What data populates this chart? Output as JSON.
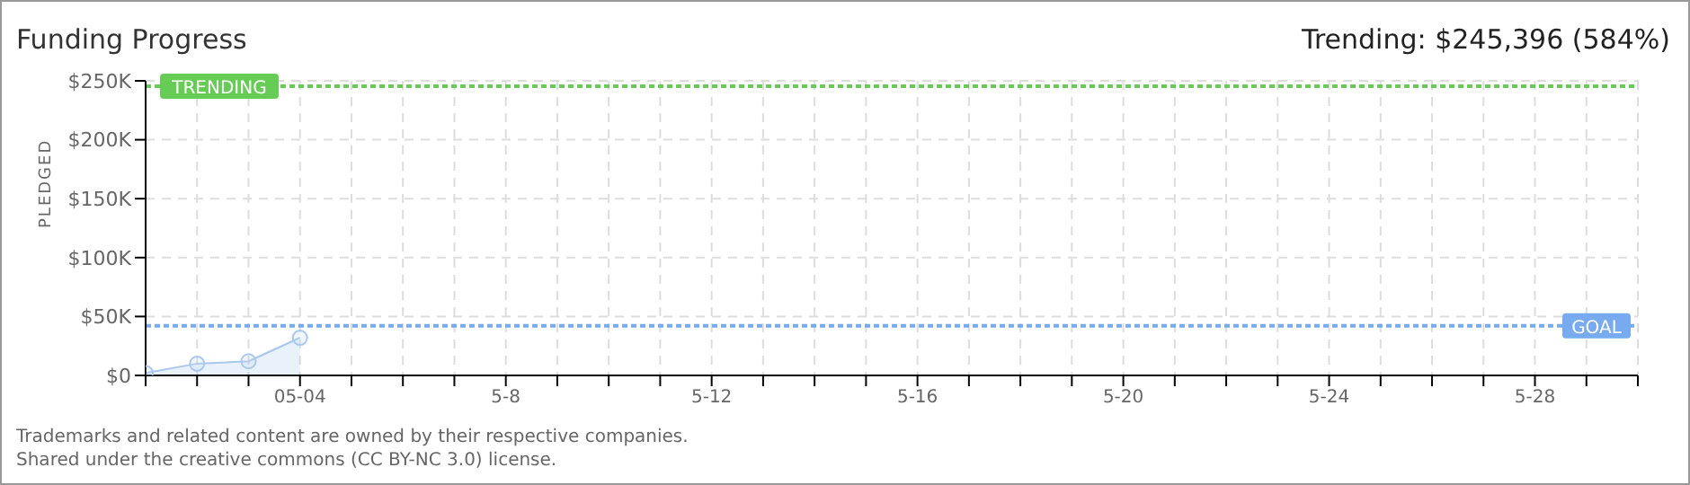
{
  "chart_data": {
    "type": "area",
    "title": "Funding Progress",
    "subtitle": "Trending: $245,396 (584%)",
    "ylabel": "PLEDGED",
    "categories": [
      null,
      null,
      null,
      "05-04",
      null,
      null,
      null,
      "5-8",
      null,
      null,
      null,
      "5-12",
      null,
      null,
      null,
      "5-16",
      null,
      null,
      null,
      "5-20",
      null,
      null,
      null,
      "5-24",
      null,
      null,
      null,
      "5-28",
      null,
      null
    ],
    "series": [
      {
        "color": "#a8c8ee",
        "values": [
          2000,
          10000,
          12000,
          32000,
          null,
          null,
          null,
          null,
          null,
          null,
          null,
          null,
          null,
          null,
          null,
          null,
          null,
          null,
          null,
          null,
          null,
          null,
          null,
          null,
          null,
          null,
          null,
          null,
          null,
          null
        ]
      }
    ],
    "ylim": [
      0,
      250000
    ],
    "yticks": [
      {
        "value": 0,
        "label": "$0"
      },
      {
        "value": 50000,
        "label": "$50K"
      },
      {
        "value": 100000,
        "label": "$100K"
      },
      {
        "value": 150000,
        "label": "$150K"
      },
      {
        "value": 200000,
        "label": "$200K"
      },
      {
        "value": 250000,
        "label": "$250K"
      }
    ],
    "ref_lines": [
      {
        "axis": "y",
        "value": 245396,
        "label": "TRENDING",
        "color": "#66cc55",
        "line_style": "dotted"
      },
      {
        "axis": "y",
        "value": 42020,
        "label": "GOAL",
        "color": "#77aaee",
        "line_style": "dotted"
      }
    ],
    "annotations": [
      "Trademarks and related content are owned by their respective companies.",
      "Shared under the creative commons (CC BY-NC 3.0) license."
    ],
    "grid": true,
    "marker": "circle"
  }
}
